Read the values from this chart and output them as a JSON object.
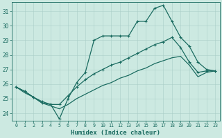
{
  "xlabel": "Humidex (Indice chaleur)",
  "xlim": [
    -0.5,
    23.5
  ],
  "ylim": [
    23.5,
    31.6
  ],
  "yticks": [
    24,
    25,
    26,
    27,
    28,
    29,
    30,
    31
  ],
  "xticks": [
    0,
    1,
    2,
    3,
    4,
    5,
    6,
    7,
    8,
    9,
    10,
    11,
    12,
    13,
    14,
    15,
    16,
    17,
    18,
    19,
    20,
    21,
    22,
    23
  ],
  "bg_color": "#cce9e1",
  "grid_color": "#aacfc8",
  "line_color": "#1a6b60",
  "line1_x": [
    0,
    1,
    2,
    3,
    4,
    5,
    6,
    7,
    8,
    9,
    10,
    11,
    12,
    13,
    14,
    15,
    16,
    17,
    18,
    19,
    20,
    21,
    22,
    23
  ],
  "line1_y": [
    25.8,
    25.5,
    25.1,
    24.7,
    24.6,
    23.6,
    25.0,
    26.1,
    26.8,
    29.0,
    29.3,
    29.3,
    29.3,
    29.3,
    30.3,
    30.3,
    31.2,
    31.4,
    30.3,
    29.2,
    28.6,
    27.5,
    27.0,
    26.9
  ],
  "line2_x": [
    0,
    1,
    2,
    3,
    4,
    5,
    6,
    7,
    8,
    9,
    10,
    11,
    12,
    13,
    14,
    15,
    16,
    17,
    18,
    19,
    20,
    21,
    22,
    23
  ],
  "line2_y": [
    25.8,
    25.5,
    25.1,
    24.8,
    24.6,
    24.6,
    25.2,
    25.8,
    26.3,
    26.7,
    27.0,
    27.3,
    27.5,
    27.8,
    28.1,
    28.4,
    28.7,
    28.9,
    29.2,
    28.5,
    27.5,
    26.8,
    26.9,
    26.9
  ],
  "line3_x": [
    0,
    1,
    2,
    3,
    4,
    5,
    6,
    7,
    8,
    9,
    10,
    11,
    12,
    13,
    14,
    15,
    16,
    17,
    18,
    19,
    20,
    21,
    22,
    23
  ],
  "line3_y": [
    25.8,
    25.4,
    25.1,
    24.7,
    24.5,
    24.3,
    24.6,
    25.0,
    25.3,
    25.6,
    25.9,
    26.1,
    26.4,
    26.6,
    26.9,
    27.1,
    27.4,
    27.6,
    27.8,
    27.9,
    27.3,
    26.5,
    26.8,
    26.9
  ],
  "markersize": 2.5,
  "linewidth": 0.9
}
